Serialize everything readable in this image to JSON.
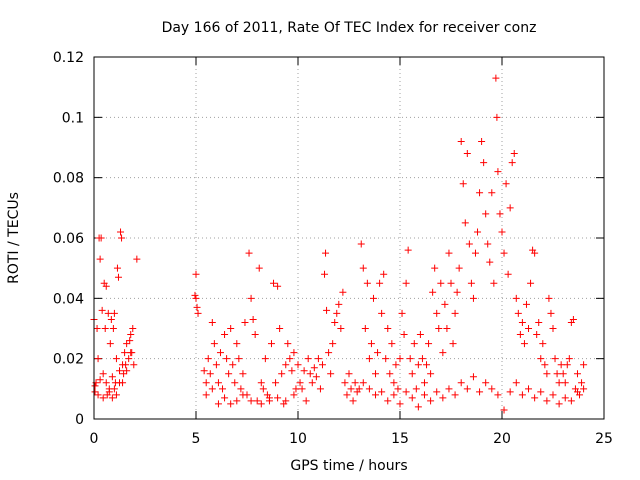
{
  "chart_data": {
    "type": "scatter",
    "title": "Day 166 of 2011, Rate Of TEC Index for receiver conz",
    "xlabel": "GPS time / hours",
    "ylabel": "ROTI / TECUs",
    "xlim": [
      0,
      25
    ],
    "ylim": [
      0,
      0.12
    ],
    "xticks": [
      0,
      5,
      10,
      15,
      20,
      25
    ],
    "xtick_labels": [
      "0",
      "5",
      "10",
      "15",
      "20",
      "25"
    ],
    "yticks": [
      0,
      0.02,
      0.04,
      0.06,
      0.08,
      0.1,
      0.12
    ],
    "ytick_labels": [
      "0",
      "0.02",
      "0.04",
      "0.06",
      "0.08",
      "0.1",
      "0.12"
    ],
    "grid": true,
    "marker": "+",
    "series": [
      {
        "name": "ROTI",
        "color": "#ff0000",
        "points": [
          [
            0.0,
            0.033
          ],
          [
            0.05,
            0.009
          ],
          [
            0.1,
            0.012
          ],
          [
            0.15,
            0.03
          ],
          [
            0.2,
            0.02
          ],
          [
            0.25,
            0.06
          ],
          [
            0.3,
            0.053
          ],
          [
            0.35,
            0.06
          ],
          [
            0.4,
            0.036
          ],
          [
            0.45,
            0.015
          ],
          [
            0.5,
            0.045
          ],
          [
            0.55,
            0.03
          ],
          [
            0.6,
            0.044
          ],
          [
            0.65,
            0.008
          ],
          [
            0.7,
            0.035
          ],
          [
            0.75,
            0.01
          ],
          [
            0.8,
            0.025
          ],
          [
            0.85,
            0.033
          ],
          [
            0.9,
            0.007
          ],
          [
            0.95,
            0.03
          ],
          [
            1.0,
            0.035
          ],
          [
            1.05,
            0.012
          ],
          [
            1.1,
            0.02
          ],
          [
            1.15,
            0.05
          ],
          [
            1.2,
            0.047
          ],
          [
            1.25,
            0.016
          ],
          [
            1.3,
            0.062
          ],
          [
            1.35,
            0.06
          ],
          [
            1.4,
            0.012
          ],
          [
            1.45,
            0.015
          ],
          [
            1.5,
            0.022
          ],
          [
            1.55,
            0.018
          ],
          [
            1.6,
            0.025
          ],
          [
            1.7,
            0.02
          ],
          [
            1.75,
            0.026
          ],
          [
            1.8,
            0.028
          ],
          [
            1.85,
            0.022
          ],
          [
            1.9,
            0.03
          ],
          [
            1.95,
            0.018
          ],
          [
            2.1,
            0.053
          ],
          [
            0.05,
            0.011
          ],
          [
            0.2,
            0.008
          ],
          [
            0.3,
            0.013
          ],
          [
            0.45,
            0.007
          ],
          [
            0.6,
            0.012
          ],
          [
            0.75,
            0.009
          ],
          [
            0.9,
            0.014
          ],
          [
            1.0,
            0.01
          ],
          [
            1.1,
            0.008
          ],
          [
            1.25,
            0.012
          ],
          [
            1.4,
            0.018
          ],
          [
            1.6,
            0.016
          ],
          [
            1.8,
            0.022
          ],
          [
            4.95,
            0.041
          ],
          [
            5.0,
            0.048
          ],
          [
            5.05,
            0.037
          ],
          [
            5.1,
            0.035
          ],
          [
            5.0,
            0.04
          ],
          [
            5.4,
            0.016
          ],
          [
            5.5,
            0.012
          ],
          [
            5.6,
            0.02
          ],
          [
            5.7,
            0.015
          ],
          [
            5.8,
            0.032
          ],
          [
            5.9,
            0.025
          ],
          [
            6.0,
            0.018
          ],
          [
            6.1,
            0.012
          ],
          [
            6.2,
            0.022
          ],
          [
            6.3,
            0.01
          ],
          [
            6.4,
            0.028
          ],
          [
            6.5,
            0.02
          ],
          [
            6.6,
            0.015
          ],
          [
            6.7,
            0.03
          ],
          [
            6.8,
            0.018
          ],
          [
            6.9,
            0.012
          ],
          [
            7.0,
            0.025
          ],
          [
            7.1,
            0.02
          ],
          [
            7.2,
            0.01
          ],
          [
            7.3,
            0.015
          ],
          [
            7.4,
            0.032
          ],
          [
            7.5,
            0.008
          ],
          [
            7.6,
            0.055
          ],
          [
            7.7,
            0.04
          ],
          [
            7.8,
            0.033
          ],
          [
            7.9,
            0.028
          ],
          [
            8.0,
            0.006
          ],
          [
            8.1,
            0.05
          ],
          [
            8.2,
            0.012
          ],
          [
            8.3,
            0.01
          ],
          [
            8.4,
            0.02
          ],
          [
            8.5,
            0.008
          ],
          [
            8.6,
            0.007
          ],
          [
            8.7,
            0.025
          ],
          [
            8.8,
            0.045
          ],
          [
            8.9,
            0.012
          ],
          [
            9.0,
            0.044
          ],
          [
            9.1,
            0.03
          ],
          [
            9.2,
            0.015
          ],
          [
            9.3,
            0.005
          ],
          [
            9.4,
            0.018
          ],
          [
            9.5,
            0.025
          ],
          [
            9.6,
            0.02
          ],
          [
            9.7,
            0.016
          ],
          [
            9.8,
            0.022
          ],
          [
            9.9,
            0.01
          ],
          [
            5.5,
            0.008
          ],
          [
            5.8,
            0.01
          ],
          [
            6.1,
            0.005
          ],
          [
            6.4,
            0.007
          ],
          [
            6.7,
            0.005
          ],
          [
            7.0,
            0.006
          ],
          [
            7.3,
            0.008
          ],
          [
            7.7,
            0.006
          ],
          [
            8.2,
            0.005
          ],
          [
            8.6,
            0.006
          ],
          [
            9.0,
            0.007
          ],
          [
            9.4,
            0.006
          ],
          [
            9.8,
            0.008
          ],
          [
            10.0,
            0.018
          ],
          [
            10.1,
            0.012
          ],
          [
            10.2,
            0.01
          ],
          [
            10.3,
            0.016
          ],
          [
            10.4,
            0.006
          ],
          [
            10.5,
            0.02
          ],
          [
            10.6,
            0.015
          ],
          [
            10.7,
            0.012
          ],
          [
            10.8,
            0.017
          ],
          [
            10.9,
            0.014
          ],
          [
            11.0,
            0.02
          ],
          [
            11.1,
            0.01
          ],
          [
            11.2,
            0.018
          ],
          [
            11.3,
            0.048
          ],
          [
            11.35,
            0.055
          ],
          [
            11.4,
            0.036
          ],
          [
            11.5,
            0.022
          ],
          [
            11.6,
            0.015
          ],
          [
            11.7,
            0.025
          ],
          [
            11.8,
            0.032
          ],
          [
            11.9,
            0.035
          ],
          [
            12.0,
            0.038
          ],
          [
            12.1,
            0.03
          ],
          [
            12.2,
            0.042
          ],
          [
            12.3,
            0.012
          ],
          [
            12.4,
            0.008
          ],
          [
            12.5,
            0.015
          ],
          [
            12.6,
            0.01
          ],
          [
            12.7,
            0.006
          ],
          [
            12.8,
            0.012
          ],
          [
            12.9,
            0.009
          ],
          [
            13.0,
            0.01
          ],
          [
            13.1,
            0.058
          ],
          [
            13.2,
            0.05
          ],
          [
            13.3,
            0.03
          ],
          [
            13.4,
            0.045
          ],
          [
            13.5,
            0.02
          ],
          [
            13.6,
            0.025
          ],
          [
            13.7,
            0.04
          ],
          [
            13.8,
            0.015
          ],
          [
            13.9,
            0.022
          ],
          [
            14.0,
            0.045
          ],
          [
            14.1,
            0.035
          ],
          [
            14.2,
            0.048
          ],
          [
            14.3,
            0.02
          ],
          [
            14.4,
            0.03
          ],
          [
            14.5,
            0.015
          ],
          [
            14.6,
            0.025
          ],
          [
            14.7,
            0.012
          ],
          [
            14.8,
            0.018
          ],
          [
            14.9,
            0.01
          ],
          [
            15.0,
            0.02
          ],
          [
            15.1,
            0.035
          ],
          [
            15.2,
            0.028
          ],
          [
            15.3,
            0.045
          ],
          [
            15.4,
            0.056
          ],
          [
            15.5,
            0.02
          ],
          [
            15.6,
            0.015
          ],
          [
            15.7,
            0.025
          ],
          [
            15.8,
            0.01
          ],
          [
            15.9,
            0.018
          ],
          [
            16.0,
            0.028
          ],
          [
            16.1,
            0.02
          ],
          [
            16.2,
            0.012
          ],
          [
            16.3,
            0.018
          ],
          [
            16.4,
            0.025
          ],
          [
            16.5,
            0.015
          ],
          [
            16.6,
            0.042
          ],
          [
            16.7,
            0.05
          ],
          [
            16.8,
            0.035
          ],
          [
            16.9,
            0.03
          ],
          [
            17.0,
            0.045
          ],
          [
            17.1,
            0.022
          ],
          [
            17.2,
            0.038
          ],
          [
            17.3,
            0.03
          ],
          [
            17.4,
            0.055
          ],
          [
            17.5,
            0.045
          ],
          [
            17.6,
            0.025
          ],
          [
            17.7,
            0.035
          ],
          [
            17.8,
            0.042
          ],
          [
            17.9,
            0.05
          ],
          [
            18.0,
            0.092
          ],
          [
            18.1,
            0.078
          ],
          [
            18.2,
            0.065
          ],
          [
            18.3,
            0.088
          ],
          [
            18.4,
            0.058
          ],
          [
            18.5,
            0.045
          ],
          [
            18.6,
            0.04
          ],
          [
            18.7,
            0.055
          ],
          [
            18.8,
            0.062
          ],
          [
            18.9,
            0.075
          ],
          [
            19.0,
            0.092
          ],
          [
            19.1,
            0.085
          ],
          [
            19.2,
            0.068
          ],
          [
            19.3,
            0.058
          ],
          [
            19.4,
            0.052
          ],
          [
            19.5,
            0.075
          ],
          [
            19.6,
            0.045
          ],
          [
            19.7,
            0.113
          ],
          [
            19.75,
            0.1
          ],
          [
            19.8,
            0.082
          ],
          [
            19.9,
            0.068
          ],
          [
            20.0,
            0.062
          ],
          [
            20.1,
            0.055
          ],
          [
            20.2,
            0.078
          ],
          [
            20.3,
            0.048
          ],
          [
            20.4,
            0.07
          ],
          [
            20.5,
            0.085
          ],
          [
            20.6,
            0.088
          ],
          [
            20.7,
            0.04
          ],
          [
            20.8,
            0.035
          ],
          [
            20.9,
            0.028
          ],
          [
            21.0,
            0.032
          ],
          [
            21.1,
            0.025
          ],
          [
            21.2,
            0.038
          ],
          [
            21.3,
            0.03
          ],
          [
            21.4,
            0.045
          ],
          [
            21.5,
            0.056
          ],
          [
            21.6,
            0.055
          ],
          [
            21.7,
            0.028
          ],
          [
            21.8,
            0.032
          ],
          [
            21.9,
            0.02
          ],
          [
            22.0,
            0.025
          ],
          [
            22.1,
            0.018
          ],
          [
            22.2,
            0.015
          ],
          [
            22.3,
            0.04
          ],
          [
            22.4,
            0.035
          ],
          [
            22.5,
            0.03
          ],
          [
            22.6,
            0.02
          ],
          [
            22.7,
            0.015
          ],
          [
            22.8,
            0.012
          ],
          [
            22.9,
            0.018
          ],
          [
            23.0,
            0.015
          ],
          [
            23.1,
            0.012
          ],
          [
            23.2,
            0.018
          ],
          [
            23.3,
            0.02
          ],
          [
            23.4,
            0.032
          ],
          [
            23.5,
            0.033
          ],
          [
            23.6,
            0.01
          ],
          [
            23.7,
            0.015
          ],
          [
            23.8,
            0.008
          ],
          [
            23.9,
            0.012
          ],
          [
            24.0,
            0.018
          ],
          [
            13.2,
            0.012
          ],
          [
            13.5,
            0.01
          ],
          [
            13.8,
            0.008
          ],
          [
            14.1,
            0.009
          ],
          [
            14.4,
            0.006
          ],
          [
            14.7,
            0.008
          ],
          [
            15.0,
            0.005
          ],
          [
            15.3,
            0.009
          ],
          [
            15.6,
            0.007
          ],
          [
            15.9,
            0.004
          ],
          [
            16.2,
            0.008
          ],
          [
            16.5,
            0.006
          ],
          [
            16.8,
            0.009
          ],
          [
            17.1,
            0.007
          ],
          [
            17.4,
            0.01
          ],
          [
            17.7,
            0.008
          ],
          [
            18.0,
            0.012
          ],
          [
            18.3,
            0.01
          ],
          [
            18.6,
            0.014
          ],
          [
            18.9,
            0.009
          ],
          [
            19.2,
            0.012
          ],
          [
            19.5,
            0.01
          ],
          [
            19.8,
            0.008
          ],
          [
            20.1,
            0.003
          ],
          [
            20.4,
            0.009
          ],
          [
            20.7,
            0.012
          ],
          [
            21.0,
            0.008
          ],
          [
            21.3,
            0.01
          ],
          [
            21.6,
            0.007
          ],
          [
            21.9,
            0.009
          ],
          [
            22.2,
            0.006
          ],
          [
            22.5,
            0.008
          ],
          [
            22.8,
            0.005
          ],
          [
            23.1,
            0.007
          ],
          [
            23.4,
            0.006
          ],
          [
            23.7,
            0.009
          ],
          [
            24.0,
            0.01
          ]
        ]
      }
    ]
  }
}
